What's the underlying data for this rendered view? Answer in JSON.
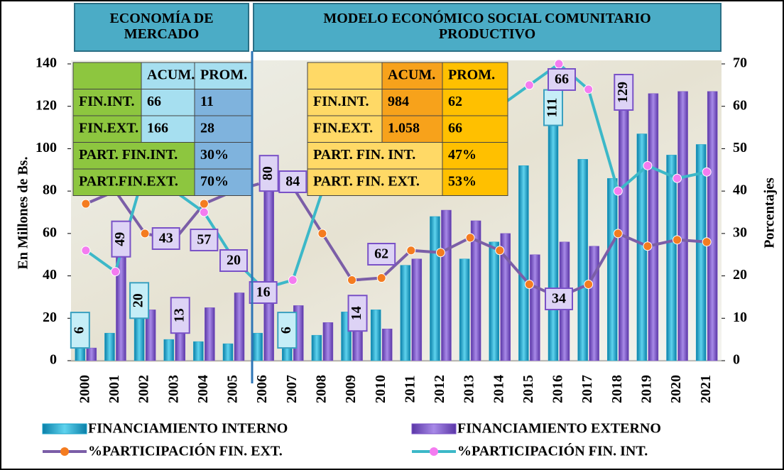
{
  "chart_data": {
    "type": "bar-line",
    "titles": [
      "ECONOMÍA DE MERCADO",
      "MODELO ECONÓMICO SOCIAL COMUNITARIO PRODUCTIVO"
    ],
    "y_label": "En Millones de Bs.",
    "y2_label": "Porcentajes",
    "categories": [
      "2000",
      "2001",
      "2002",
      "2003",
      "2004",
      "2005",
      "2006",
      "2007",
      "2008",
      "2009",
      "2010",
      "2011",
      "2012",
      "2013",
      "2014",
      "2015",
      "2016",
      "2017",
      "2018",
      "2019",
      "2020",
      "2021"
    ],
    "ylim": [
      0,
      140
    ],
    "yticks": [
      0,
      20,
      40,
      60,
      80,
      100,
      120,
      140
    ],
    "y2lim": [
      0,
      70
    ],
    "y2ticks": [
      0,
      10,
      20,
      30,
      40,
      50,
      60,
      70
    ],
    "series": [
      {
        "name": "FINANCIAMIENTO INTERNO",
        "kind": "bar",
        "color": "#1aa3c8",
        "values": [
          6,
          13,
          20,
          10,
          9,
          8,
          13,
          6,
          12,
          23,
          24,
          45,
          68,
          48,
          56,
          92,
          111,
          95,
          86,
          107,
          97,
          102
        ],
        "value_labels": [
          "6",
          null,
          "20",
          null,
          null,
          null,
          null,
          "6",
          null,
          null,
          null,
          null,
          null,
          null,
          null,
          null,
          "111",
          null,
          null,
          null,
          null,
          null
        ]
      },
      {
        "name": "FINANCIAMIENTO EXTERNO",
        "kind": "bar",
        "color": "#7a52c7",
        "values": [
          6,
          49,
          24,
          13,
          25,
          32,
          80,
          26,
          18,
          14,
          15,
          48,
          71,
          66,
          60,
          50,
          56,
          54,
          129,
          126,
          127,
          127
        ],
        "value_labels": [
          null,
          "49",
          null,
          "13",
          null,
          null,
          "80",
          null,
          null,
          "14",
          null,
          null,
          null,
          null,
          null,
          null,
          null,
          null,
          "129",
          null,
          null,
          null
        ]
      },
      {
        "name": "%PARTICIPACIÓN FIN. EXT.",
        "kind": "line",
        "axis": "y2",
        "color": "#7b5ea7",
        "marker": "#f47c20",
        "values": [
          37,
          40,
          30,
          28.5,
          37,
          40,
          42,
          41,
          30,
          19,
          19.5,
          26,
          25.5,
          29,
          26,
          18,
          15,
          18,
          30,
          27,
          28.5,
          28
        ]
      },
      {
        "name": "%PARTICIPACIÓN FIN. INT.",
        "kind": "line",
        "axis": "y2",
        "color": "#3cb8c8",
        "marker": "#f47cf0",
        "values": [
          26,
          21,
          45,
          40,
          35,
          24,
          17,
          19,
          40,
          50,
          55,
          52,
          55,
          58,
          60,
          65,
          70,
          64,
          40,
          46,
          43,
          44.5
        ]
      }
    ],
    "annotations": [
      {
        "text": "43",
        "category": 3
      },
      {
        "text": "57",
        "category": 4
      },
      {
        "text": "20",
        "category": 5
      },
      {
        "text": "16",
        "category": 6
      },
      {
        "text": "84",
        "category": 7
      },
      {
        "text": "62",
        "category": 10
      },
      {
        "text": "34",
        "category": 16
      },
      {
        "text": "66",
        "category": 16
      }
    ],
    "tables": [
      {
        "header": [
          "ACUM.",
          "PROM."
        ],
        "rows": [
          [
            "FIN.INT.",
            "66",
            "11"
          ],
          [
            "FIN.EXT.",
            "166",
            "28"
          ],
          [
            "PART. FIN.INT.",
            "30%"
          ],
          [
            "PART.FIN.EXT.",
            "70%"
          ]
        ]
      },
      {
        "header": [
          "ACUM.",
          "PROM."
        ],
        "rows": [
          [
            "FIN.INT.",
            "984",
            "62"
          ],
          [
            "FIN.EXT.",
            "1.058",
            "66"
          ],
          [
            "PART. FIN. INT.",
            "47%"
          ],
          [
            "PART. FIN. EXT.",
            "53%"
          ]
        ]
      }
    ]
  }
}
